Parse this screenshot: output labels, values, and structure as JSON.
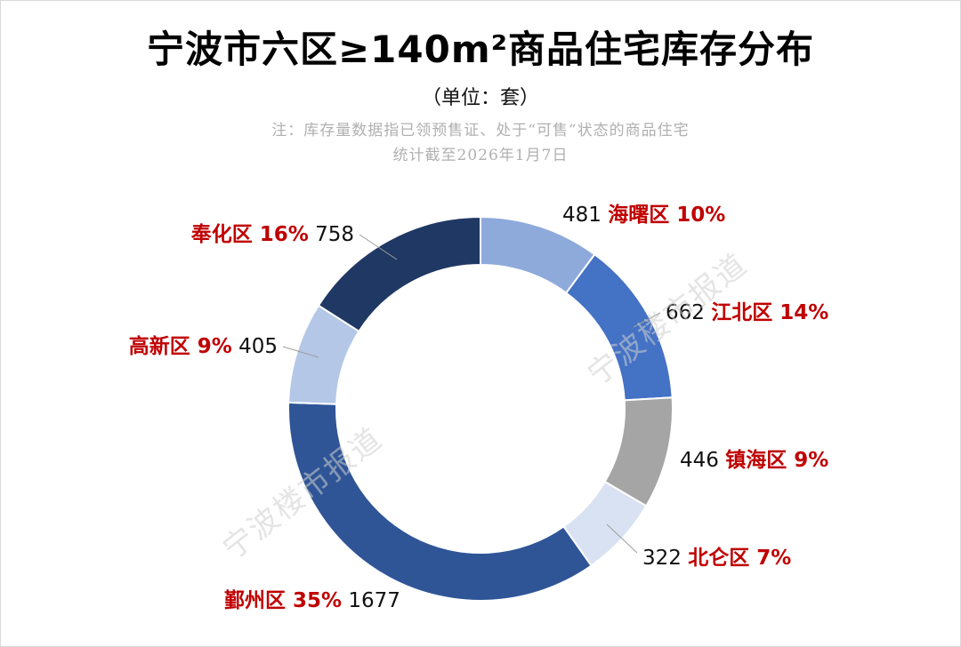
{
  "title": "宁波市六区≥140m²商品住宅库存分布",
  "subtitle": "（单位：套）",
  "notes": [
    "注：库存量数据指已领预售证、处于“可售”状态的商品住宅",
    "统计截至2026年1月7日"
  ],
  "watermark": "宁波楼市报道",
  "chart_data": {
    "type": "pie",
    "variant": "donut",
    "unit": "套",
    "slices": [
      {
        "name": "海曙区",
        "value": 481,
        "percent": "10%",
        "color": "#8eaadb"
      },
      {
        "name": "江北区",
        "value": 662,
        "percent": "14%",
        "color": "#4472c4"
      },
      {
        "name": "镇海区",
        "value": 446,
        "percent": "9%",
        "color": "#a5a5a5"
      },
      {
        "name": "北仑区",
        "value": 322,
        "percent": "7%",
        "color": "#d9e2f3"
      },
      {
        "name": "鄞州区",
        "value": 1677,
        "percent": "35%",
        "color": "#2f5597"
      },
      {
        "name": "高新区",
        "value": 405,
        "percent": "9%",
        "color": "#b4c7e7"
      },
      {
        "name": "奉化区",
        "value": 758,
        "percent": "16%",
        "color": "#1f3864"
      }
    ],
    "label_color": "#c00000"
  }
}
